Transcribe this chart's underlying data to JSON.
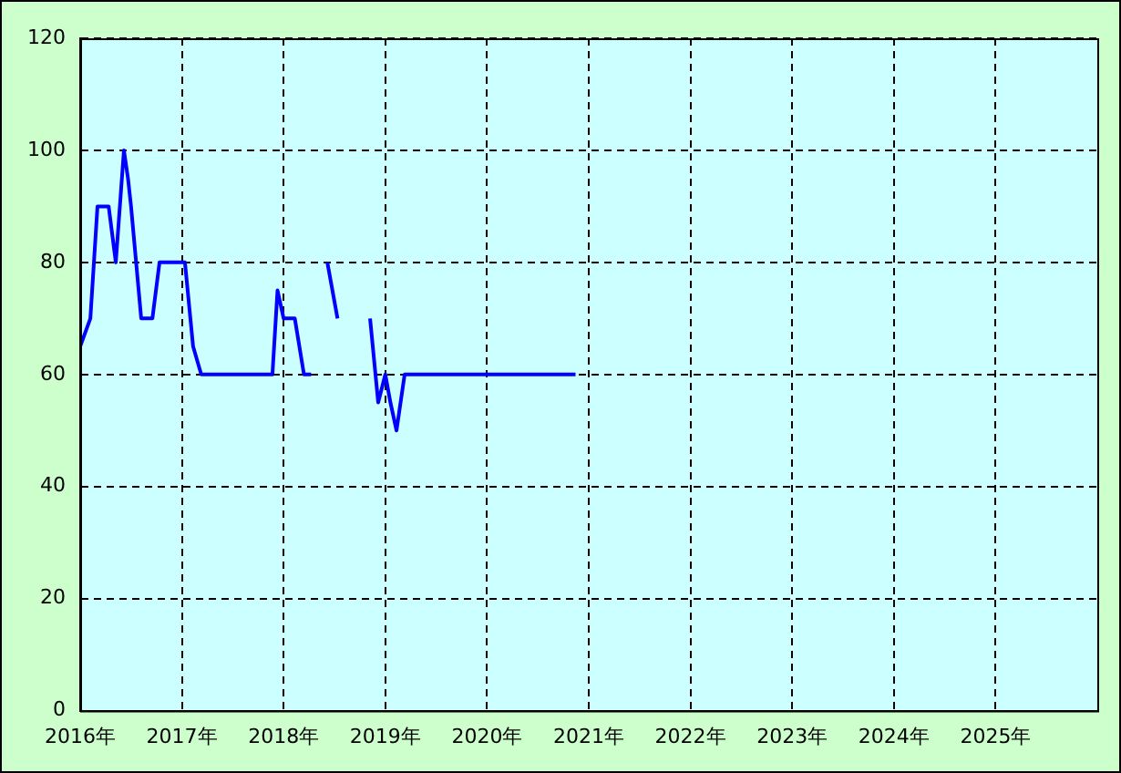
{
  "chart_data": {
    "type": "line",
    "x": [
      2016.0,
      2016.1,
      2016.17,
      2016.28,
      2016.35,
      2016.43,
      2016.47,
      2016.5,
      2016.6,
      2016.71,
      2016.78,
      2017.03,
      2017.11,
      2017.19,
      2017.89,
      2017.94,
      2018.0,
      2018.11,
      2018.2,
      2018.27,
      2018.35,
      2018.43,
      2018.53,
      2018.7,
      2018.85,
      2018.93,
      2019.0,
      2019.05,
      2019.11,
      2019.19,
      2020.87
    ],
    "series": [
      {
        "color": "#0000ff",
        "values": [
          65,
          70,
          90,
          90,
          80,
          100,
          95,
          90,
          70,
          70,
          80,
          80,
          65,
          60,
          60,
          75,
          70,
          70,
          60,
          60,
          null,
          80,
          70,
          null,
          70,
          55,
          60,
          55,
          50,
          60,
          60
        ]
      }
    ],
    "xlim": [
      2016,
      2026
    ],
    "xticks": [
      {
        "value": 2016,
        "label": "2016年"
      },
      {
        "value": 2017,
        "label": "2017年"
      },
      {
        "value": 2018,
        "label": "2018年"
      },
      {
        "value": 2019,
        "label": "2019年"
      },
      {
        "value": 2020,
        "label": "2020年"
      },
      {
        "value": 2021,
        "label": "2021年"
      },
      {
        "value": 2022,
        "label": "2022年"
      },
      {
        "value": 2023,
        "label": "2023年"
      },
      {
        "value": 2024,
        "label": "2024年"
      },
      {
        "value": 2025,
        "label": "2025年"
      }
    ],
    "ylim": [
      0,
      120
    ],
    "yticks": [
      0,
      20,
      40,
      60,
      80,
      100,
      120
    ],
    "grid": true,
    "legend": false,
    "marker": "none",
    "line_style": "solid"
  }
}
